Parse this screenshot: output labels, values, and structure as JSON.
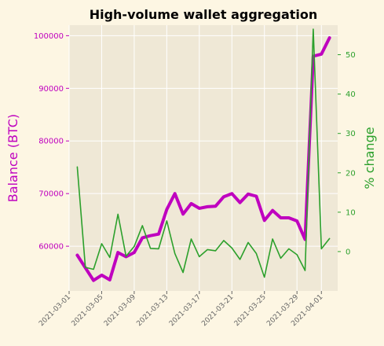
{
  "chart_data": {
    "type": "line",
    "title": "High-volume wallet aggregation",
    "ylabel_left": "Balance (BTC)",
    "ylabel_right": "% change",
    "x": [
      "2021-03-02",
      "2021-03-03",
      "2021-03-04",
      "2021-03-05",
      "2021-03-06",
      "2021-03-07",
      "2021-03-08",
      "2021-03-09",
      "2021-03-10",
      "2021-03-11",
      "2021-03-12",
      "2021-03-13",
      "2021-03-14",
      "2021-03-15",
      "2021-03-16",
      "2021-03-17",
      "2021-03-18",
      "2021-03-19",
      "2021-03-20",
      "2021-03-21",
      "2021-03-22",
      "2021-03-23",
      "2021-03-24",
      "2021-03-25",
      "2021-03-26",
      "2021-03-27",
      "2021-03-28",
      "2021-03-29",
      "2021-03-30",
      "2021-03-31",
      "2021-04-01",
      "2021-04-02"
    ],
    "x_ticks": [
      "2021-03-01",
      "2021-03-05",
      "2021-03-09",
      "2021-03-13",
      "2021-03-17",
      "2021-03-21",
      "2021-03-25",
      "2021-03-29",
      "2021-04-01"
    ],
    "x_range": [
      "2021-02-29",
      "2021-04-03"
    ],
    "y_left_ticks": [
      60000,
      70000,
      80000,
      90000,
      100000
    ],
    "y_left_range": [
      51500,
      102000
    ],
    "y_right_ticks": [
      0,
      10,
      20,
      30,
      40,
      50
    ],
    "y_right_range": [
      -10,
      57.5
    ],
    "grid": true,
    "series": [
      {
        "axis": "left",
        "color": "#bf00bf",
        "values": [
          58300,
          55900,
          53500,
          54500,
          53600,
          58800,
          58000,
          58800,
          61600,
          62000,
          62300,
          67000,
          70000,
          66100,
          68100,
          67200,
          67500,
          67600,
          69400,
          70000,
          68300,
          69900,
          69500,
          64900,
          66800,
          65400,
          65400,
          64800,
          61300,
          96100,
          96500,
          99600
        ]
      },
      {
        "axis": "right",
        "color": "#2ca02c",
        "values": [
          21.5,
          -4,
          -4.5,
          2,
          -1.5,
          9.5,
          -1.2,
          1.3,
          6.6,
          0.8,
          0.7,
          7.8,
          -0.5,
          -5.3,
          3.2,
          -1.3,
          0.5,
          0.2,
          2.8,
          0.9,
          -2,
          2.3,
          -0.5,
          -6.5,
          3.2,
          -1.7,
          0.7,
          -0.8,
          -4.8,
          56.5,
          0.7,
          3.3
        ]
      }
    ]
  }
}
